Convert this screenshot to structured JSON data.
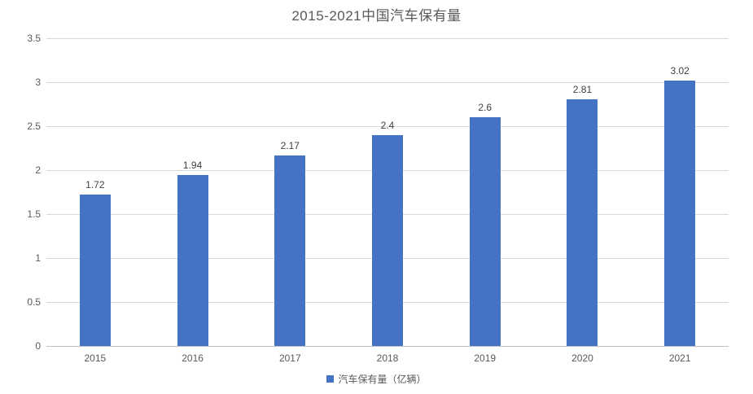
{
  "chart_data": {
    "type": "bar",
    "title": "2015-2021中国汽车保有量",
    "categories": [
      "2015",
      "2016",
      "2017",
      "2018",
      "2019",
      "2020",
      "2021"
    ],
    "series": [
      {
        "name": "汽车保有量（亿辆）",
        "values": [
          1.72,
          1.94,
          2.17,
          2.4,
          2.6,
          2.81,
          3.02
        ]
      }
    ],
    "data_labels": [
      "1.72",
      "1.94",
      "2.17",
      "2.4",
      "2.6",
      "2.81",
      "3.02"
    ],
    "xlabel": "",
    "ylabel": "",
    "ylim": [
      0,
      3.5
    ],
    "ytick_step": 0.5,
    "yticks": [
      "0",
      "0.5",
      "1",
      "1.5",
      "2",
      "2.5",
      "3",
      "3.5"
    ],
    "grid": true,
    "legend_position": "bottom",
    "bar_color": "#4472C4",
    "gridline_color": "#D9D9D9",
    "axis_line_color": "#BFBFBF",
    "title_color": "#595959",
    "tick_label_color": "#595959",
    "value_label_color": "#404040"
  },
  "legend": {
    "label": "汽车保有量（亿辆）"
  }
}
